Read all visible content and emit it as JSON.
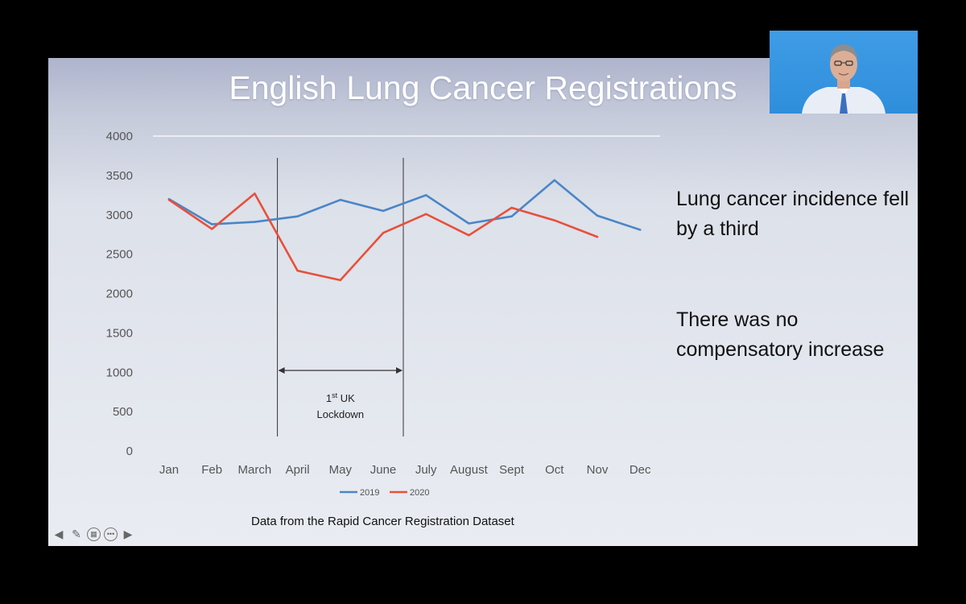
{
  "slide": {
    "title": "English Lung Cancer Registrations",
    "side_text_1": "Lung cancer incidence fell by a third",
    "side_text_2": "There was no compensatory increase",
    "source_note": "Data from the Rapid Cancer Registration Dataset",
    "annotation_line1_main": "1",
    "annotation_line1_sup": "st",
    "annotation_line1_rest": " UK",
    "annotation_line2": "Lockdown"
  },
  "controls": {
    "prev_icon": "arrow-left-icon",
    "pen_icon": "pen-icon",
    "slides_icon": "slides-grid-icon",
    "more_icon": "more-icon",
    "next_icon": "arrow-right-icon"
  },
  "colors": {
    "series_2019": "#4a86c8",
    "series_2020": "#e8503a"
  },
  "chart_data": {
    "type": "line",
    "categories": [
      "Jan",
      "Feb",
      "March",
      "April",
      "May",
      "June",
      "July",
      "August",
      "Sept",
      "Oct",
      "Nov",
      "Dec"
    ],
    "series": [
      {
        "name": "2019",
        "values": [
          3200,
          2880,
          2910,
          2980,
          3190,
          3050,
          3250,
          2890,
          2980,
          3440,
          2990,
          2810
        ]
      },
      {
        "name": "2020",
        "values": [
          3190,
          2820,
          3270,
          2290,
          2170,
          2770,
          3010,
          2740,
          3090,
          2930,
          2720,
          null
        ]
      }
    ],
    "y_ticks": [
      0,
      500,
      1000,
      1500,
      2000,
      2500,
      3000,
      3500,
      4000
    ],
    "ylim": [
      0,
      4000
    ],
    "legend_position": "bottom",
    "lockdown_span": [
      "March",
      "June"
    ],
    "grid": false
  }
}
